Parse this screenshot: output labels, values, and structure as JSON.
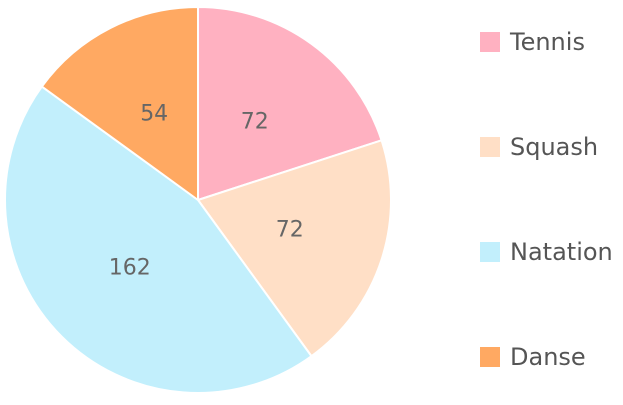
{
  "chart_data": {
    "type": "pie",
    "categories": [
      "Tennis",
      "Squash",
      "Natation",
      "Danse"
    ],
    "values": [
      72,
      72,
      162,
      54
    ],
    "colors": [
      "#FFB1C1",
      "#FFDFC6",
      "#C2EFFC",
      "#FFA962"
    ],
    "title": "",
    "legend": {
      "position": "right"
    },
    "data_labels": true
  }
}
